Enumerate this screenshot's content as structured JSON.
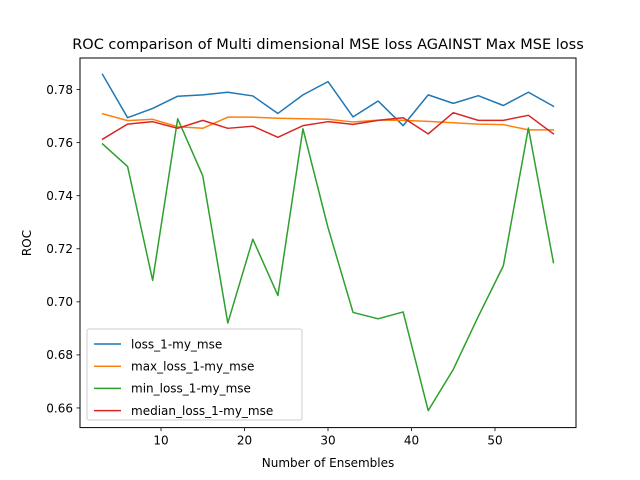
{
  "chart_data": {
    "type": "line",
    "title": "ROC comparison of Multi dimensional MSE loss AGAINST Max MSE loss",
    "xlabel": "Number of Ensembles",
    "ylabel": "ROC",
    "xlim": [
      0.3,
      59.7
    ],
    "ylim": [
      0.6526,
      0.7919
    ],
    "xticks": [
      10,
      20,
      30,
      40,
      50
    ],
    "yticks": [
      0.66,
      0.68,
      0.7,
      0.72,
      0.74,
      0.76,
      0.78
    ],
    "ytick_labels": [
      "0.66",
      "0.68",
      "0.70",
      "0.72",
      "0.74",
      "0.76",
      "0.78"
    ],
    "grid": false,
    "legend_position": "lower-left",
    "x": [
      3,
      6,
      9,
      12,
      15,
      18,
      21,
      24,
      27,
      30,
      33,
      36,
      39,
      42,
      45,
      48,
      51,
      54,
      57
    ],
    "series": [
      {
        "name": "loss_1-my_mse",
        "color": "#1f77b4",
        "values": [
          0.7857,
          0.7694,
          0.7729,
          0.7775,
          0.778,
          0.779,
          0.7776,
          0.771,
          0.778,
          0.783,
          0.7697,
          0.7757,
          0.7664,
          0.778,
          0.7748,
          0.7777,
          0.774,
          0.779,
          0.7737
        ]
      },
      {
        "name": "max_loss_1-my_mse",
        "color": "#ff7f0e",
        "values": [
          0.7709,
          0.7683,
          0.7688,
          0.766,
          0.7654,
          0.7696,
          0.7696,
          0.7692,
          0.769,
          0.7688,
          0.7678,
          0.7685,
          0.7684,
          0.768,
          0.7675,
          0.767,
          0.7668,
          0.7648,
          0.7648
        ]
      },
      {
        "name": "min_loss_1-my_mse",
        "color": "#2ca02c",
        "values": [
          0.7595,
          0.751,
          0.7081,
          0.769,
          0.7475,
          0.692,
          0.7236,
          0.7024,
          0.7652,
          0.728,
          0.696,
          0.6936,
          0.6962,
          0.659,
          0.6745,
          0.6945,
          0.7136,
          0.7655,
          0.7148
        ]
      },
      {
        "name": "median_loss_1-my_mse",
        "color": "#d62728",
        "values": [
          0.7613,
          0.767,
          0.7679,
          0.7654,
          0.7684,
          0.7654,
          0.7662,
          0.762,
          0.7664,
          0.7679,
          0.7669,
          0.7684,
          0.7694,
          0.7633,
          0.7713,
          0.7684,
          0.7684,
          0.7703,
          0.7633
        ]
      }
    ]
  }
}
